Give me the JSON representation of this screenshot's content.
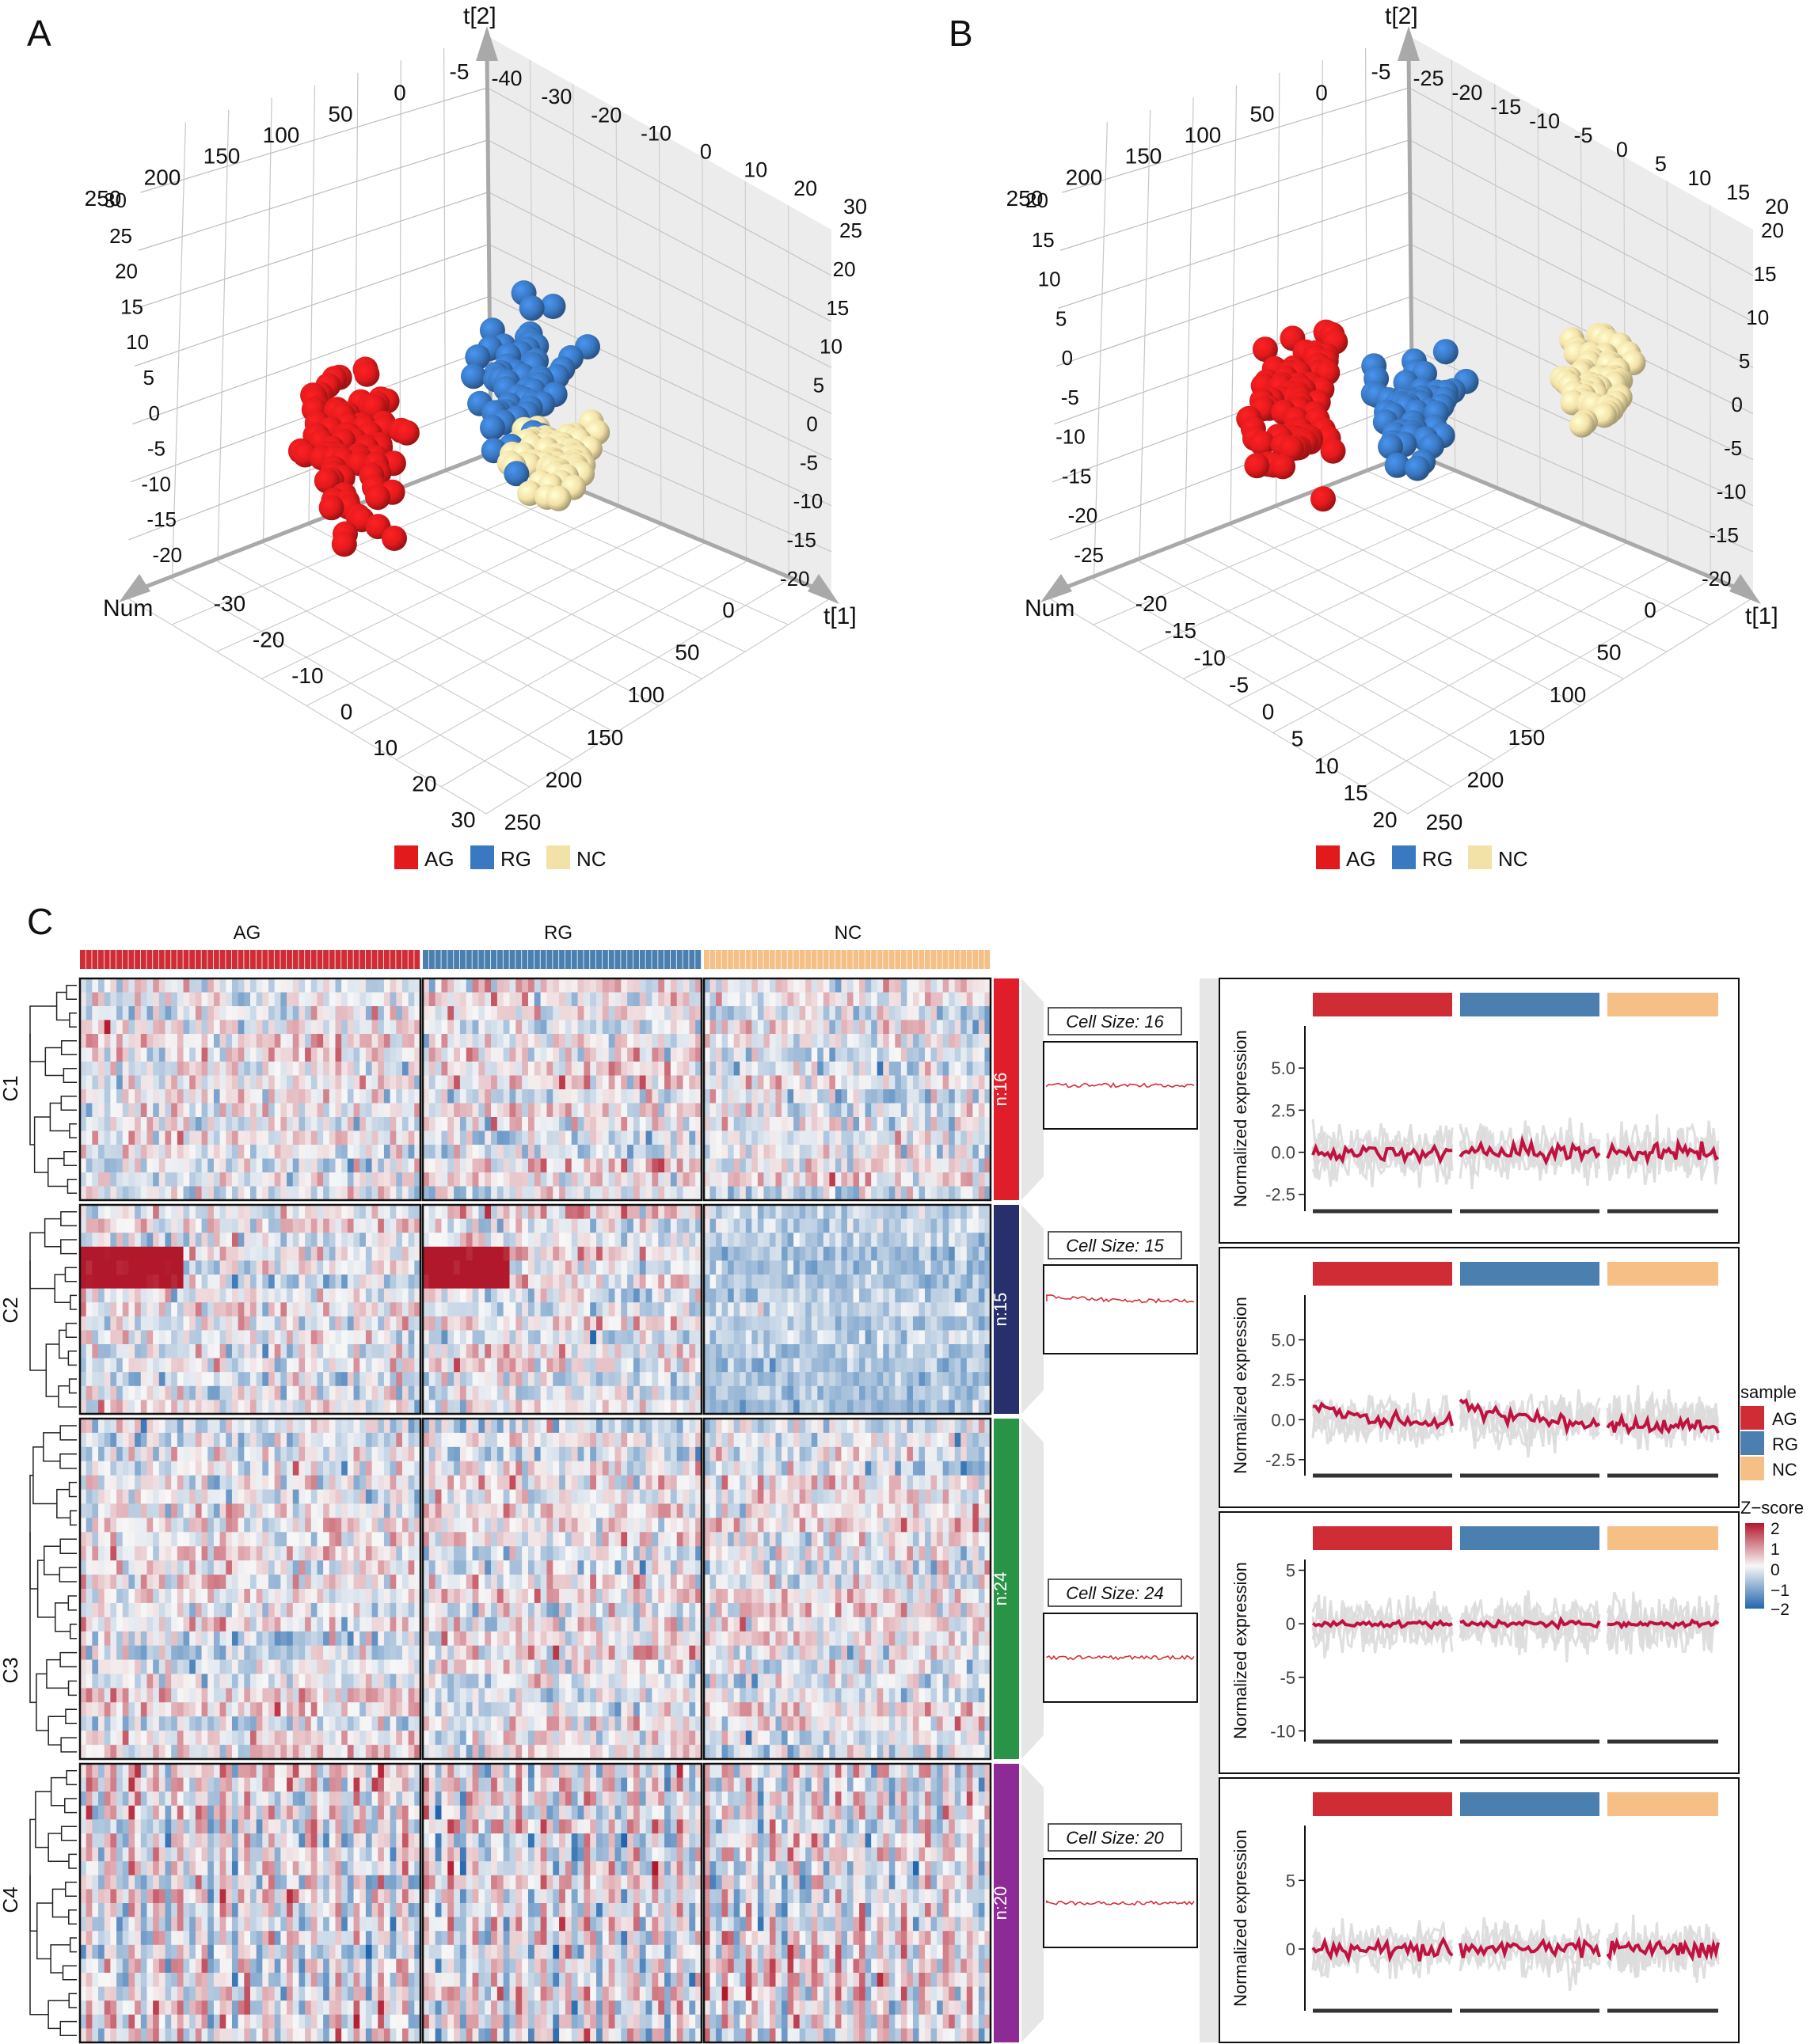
{
  "panels": {
    "A": {
      "label": "A"
    },
    "B": {
      "label": "B"
    },
    "C": {
      "label": "C"
    }
  },
  "colors": {
    "AG": "#e31a1c",
    "RG": "#3a78c2",
    "NC": "#f3e2a8",
    "AG_bar": "#cf2c36",
    "RG_bar": "#4a7fb0",
    "NC_bar": "#f6bf85",
    "heat_high": "#b2182b",
    "heat_mid": "#f7f7f7",
    "heat_low": "#2166ac",
    "trend": "#c0113f",
    "c1": "#e01e2a",
    "c2": "#27306d",
    "c3": "#2a9446",
    "c4": "#8e2a96"
  },
  "chart_data": [
    {
      "type": "scatter",
      "panel": "A",
      "title": "",
      "axes": {
        "t1": {
          "label": "t[1]",
          "ticks": [
            "0",
            "50",
            "100",
            "150",
            "200",
            "250"
          ]
        },
        "t2": {
          "label": "t[2]",
          "ticks": [
            "-5",
            "0",
            "5",
            "10",
            "15",
            "20",
            "25",
            "30"
          ]
        },
        "num": {
          "label": "Num",
          "ticks": [
            "-30",
            "-20",
            "-10",
            "0",
            "10",
            "20",
            "30"
          ]
        },
        "back_top": [
          "250",
          "200",
          "150",
          "100",
          "50",
          "0",
          "-5"
        ],
        "top_right": [
          "-40",
          "-30",
          "-20",
          "-10",
          "0",
          "10",
          "20",
          "30"
        ],
        "left_side": [
          "30",
          "25",
          "20",
          "15",
          "10",
          "5",
          "0",
          "-5",
          "-10",
          "-15",
          "-20"
        ],
        "right_side": [
          "25",
          "20",
          "15",
          "10",
          "5",
          "0",
          "-5",
          "-10",
          "-15",
          "-20"
        ]
      },
      "legend": [
        "AG",
        "RG",
        "NC"
      ],
      "series_counts": {
        "AG": 80,
        "RG": 60,
        "NC": 70
      }
    },
    {
      "type": "scatter",
      "panel": "B",
      "title": "",
      "axes": {
        "t1": {
          "label": "t[1]",
          "ticks": [
            "0",
            "50",
            "100",
            "150",
            "200",
            "250"
          ]
        },
        "t2": {
          "label": "t[2]",
          "ticks": [
            "-20",
            "-15",
            "-10",
            "-5",
            "0",
            "5",
            "10",
            "15",
            "20"
          ]
        },
        "num": {
          "label": "Num",
          "ticks": [
            "-20",
            "-15",
            "-10",
            "-5",
            "0",
            "5",
            "10",
            "15",
            "20"
          ]
        },
        "back_top": [
          "250",
          "200",
          "150",
          "100",
          "50",
          "0",
          "-5"
        ],
        "top_right": [
          "-25",
          "-20",
          "-15",
          "-10",
          "-5",
          "0",
          "5",
          "10",
          "15",
          "20"
        ],
        "left_side": [
          "20",
          "15",
          "10",
          "5",
          "0",
          "-5",
          "-10",
          "-15",
          "-20",
          "-25"
        ],
        "right_side": [
          "20",
          "15",
          "10",
          "5",
          "0",
          "-5",
          "-10",
          "-15",
          "-20"
        ]
      },
      "legend": [
        "AG",
        "RG",
        "NC"
      ],
      "series_counts": {
        "AG": 75,
        "RG": 55,
        "NC": 60
      }
    },
    {
      "type": "heatmap",
      "panel": "C",
      "column_groups": [
        {
          "name": "AG",
          "samples": 56
        },
        {
          "name": "RG",
          "samples": 45
        },
        {
          "name": "NC",
          "samples": 48
        }
      ],
      "clusters": [
        {
          "name": "C1",
          "count_label": "n:16",
          "rows": 16,
          "cell_size": "Cell Size: 16"
        },
        {
          "name": "C2",
          "count_label": "n:15",
          "rows": 15,
          "cell_size": "Cell Size: 15"
        },
        {
          "name": "C3",
          "count_label": "n:24",
          "rows": 24,
          "cell_size": "Cell Size: 24"
        },
        {
          "name": "C4",
          "count_label": "n:20",
          "rows": 20,
          "cell_size": "Cell Size: 20"
        }
      ],
      "zscore_legend": {
        "title": "Z−score",
        "ticks": [
          "2",
          "1",
          "0",
          "−1",
          "−2"
        ],
        "range": [
          -2,
          2
        ]
      },
      "sample_legend": {
        "title": "sample",
        "items": [
          "AG",
          "RG",
          "NC"
        ]
      }
    },
    {
      "type": "line",
      "panel": "C",
      "ylabel": "Normalized expression",
      "groups": [
        "AG",
        "RG",
        "NC"
      ],
      "subplots": [
        {
          "cluster": "C1",
          "ylim": [
            -3.5,
            7.5
          ],
          "yticks": [
            "5.0",
            "2.5",
            "0.0",
            "-2.5"
          ],
          "ytick_values": [
            5.0,
            2.5,
            0.0,
            -2.5
          ],
          "amp": 0.55
        },
        {
          "cluster": "C2",
          "ylim": [
            -3.5,
            7.8
          ],
          "yticks": [
            "5.0",
            "2.5",
            "0.0",
            "-2.5"
          ],
          "ytick_values": [
            5.0,
            2.5,
            0.0,
            -2.5
          ],
          "amp": 0.5
        },
        {
          "cluster": "C3",
          "ylim": [
            -11,
            6
          ],
          "yticks": [
            "5",
            "0",
            "-5",
            "-10"
          ],
          "ytick_values": [
            5,
            0,
            -5,
            -10
          ],
          "amp": 0.3
        },
        {
          "cluster": "C4",
          "ylim": [
            -4.5,
            9
          ],
          "yticks": [
            "5",
            "0"
          ],
          "ytick_values": [
            5,
            0
          ],
          "amp": 0.65
        }
      ]
    }
  ]
}
